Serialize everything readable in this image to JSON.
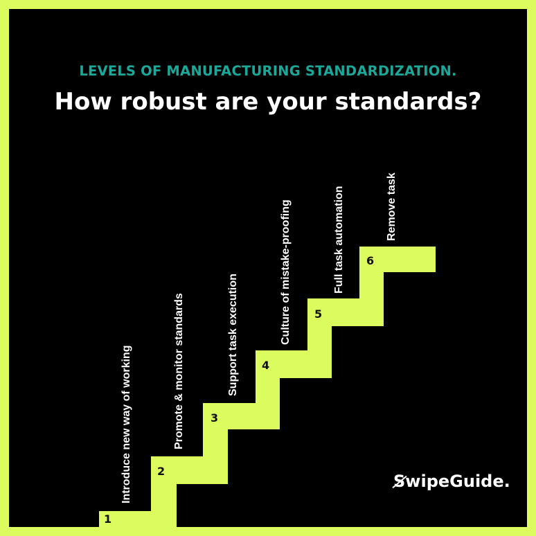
{
  "header": {
    "subtitle": "LEVELS OF MANUFACTURING STANDARDIZATION.",
    "title": "How robust are your standards?"
  },
  "steps": [
    {
      "number": "1",
      "label": "Introduce new way of working"
    },
    {
      "number": "2",
      "label": "Promote & monitor standards"
    },
    {
      "number": "3",
      "label": "Support task execution"
    },
    {
      "number": "4",
      "label": "Culture of mistake-proofing"
    },
    {
      "number": "5",
      "label": "Full task automation"
    },
    {
      "number": "6",
      "label": "Remove task"
    }
  ],
  "brand": {
    "first_letter": "S",
    "rest": "wipeGuide."
  },
  "colors": {
    "accent": "#dbfb5e",
    "background": "#000000",
    "subtitle": "#1aa89a",
    "text": "#ffffff"
  }
}
